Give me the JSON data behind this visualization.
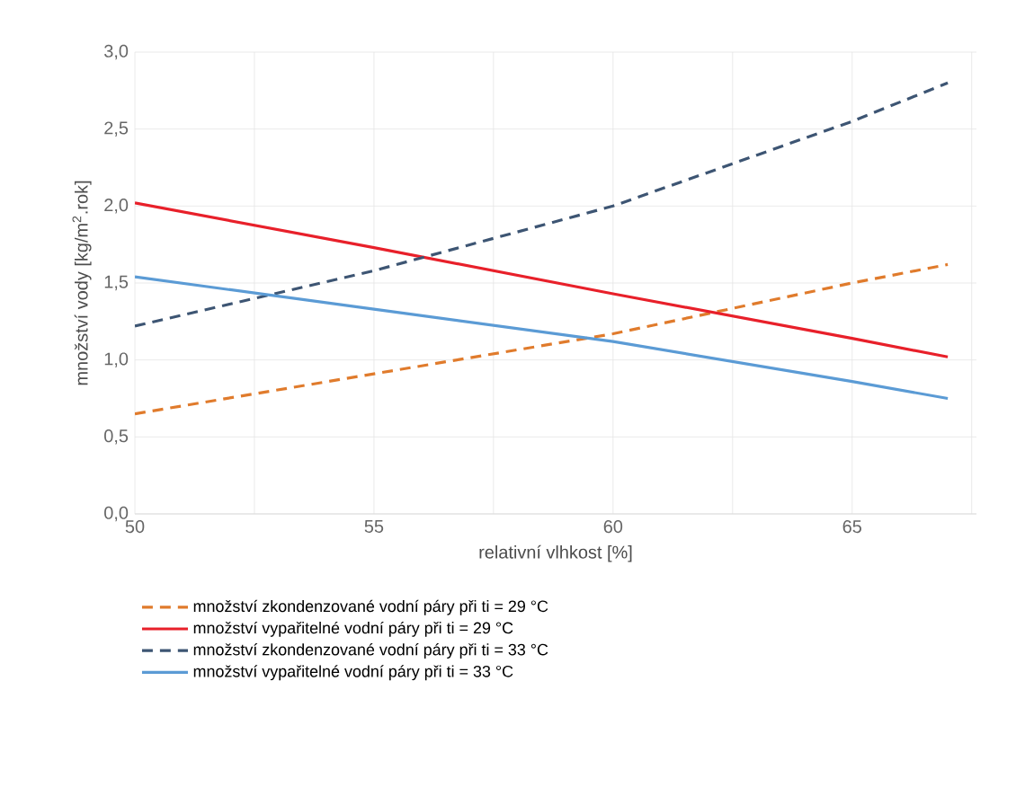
{
  "chart_data": {
    "type": "line",
    "xlabel": "relativní vlhkost [%]",
    "ylabel": "množství vody [kg/m$^{2}$.rok]",
    "xlim": [
      50,
      67.6
    ],
    "xticks": [
      50,
      {
        "value": 52.5,
        "label": null
      },
      55,
      {
        "value": 57.5,
        "label": null
      },
      60,
      {
        "value": 62.5,
        "label": null
      },
      65,
      {
        "value": 67.5,
        "label": null
      }
    ],
    "ylim": [
      0,
      3
    ],
    "yticks": [
      {
        "value": 0,
        "label": "0,0"
      },
      {
        "value": 0.5,
        "label": "0,5"
      },
      {
        "value": 1,
        "label": "1,0"
      },
      {
        "value": 1.5,
        "label": "1,5"
      },
      {
        "value": 2,
        "label": "2,0"
      },
      {
        "value": 2.5,
        "label": "2,5"
      },
      {
        "value": 3,
        "label": "3,0"
      }
    ],
    "grid": true,
    "legend": "bottom",
    "series": [
      {
        "name": "množství zkondenzované vodní páry při ti = 29 °C",
        "color": "#e07b2c",
        "line_style": "dashed",
        "x": [
          50,
          55,
          60,
          65,
          67
        ],
        "values": [
          0.65,
          0.91,
          1.17,
          1.5,
          1.62
        ]
      },
      {
        "name": "množství vypařitelné vodní páry  při ti = 29 °C",
        "color": "#e8202a",
        "line_style": "solid",
        "x": [
          50,
          55,
          60,
          65,
          67
        ],
        "values": [
          2.02,
          1.73,
          1.43,
          1.14,
          1.02
        ]
      },
      {
        "name": "množství zkondenzované vodní páry při ti = 33 °C",
        "color": "#3d5573",
        "line_style": "dashed",
        "x": [
          50,
          55,
          60,
          65,
          67
        ],
        "values": [
          1.22,
          1.58,
          2.0,
          2.55,
          2.8
        ]
      },
      {
        "name": "množství vypařitelné vodní páry při ti = 33 °C",
        "color": "#5b9bd5",
        "line_style": "solid",
        "x": [
          50,
          55,
          60,
          65,
          67
        ],
        "values": [
          1.54,
          1.33,
          1.12,
          0.86,
          0.75
        ]
      }
    ]
  }
}
